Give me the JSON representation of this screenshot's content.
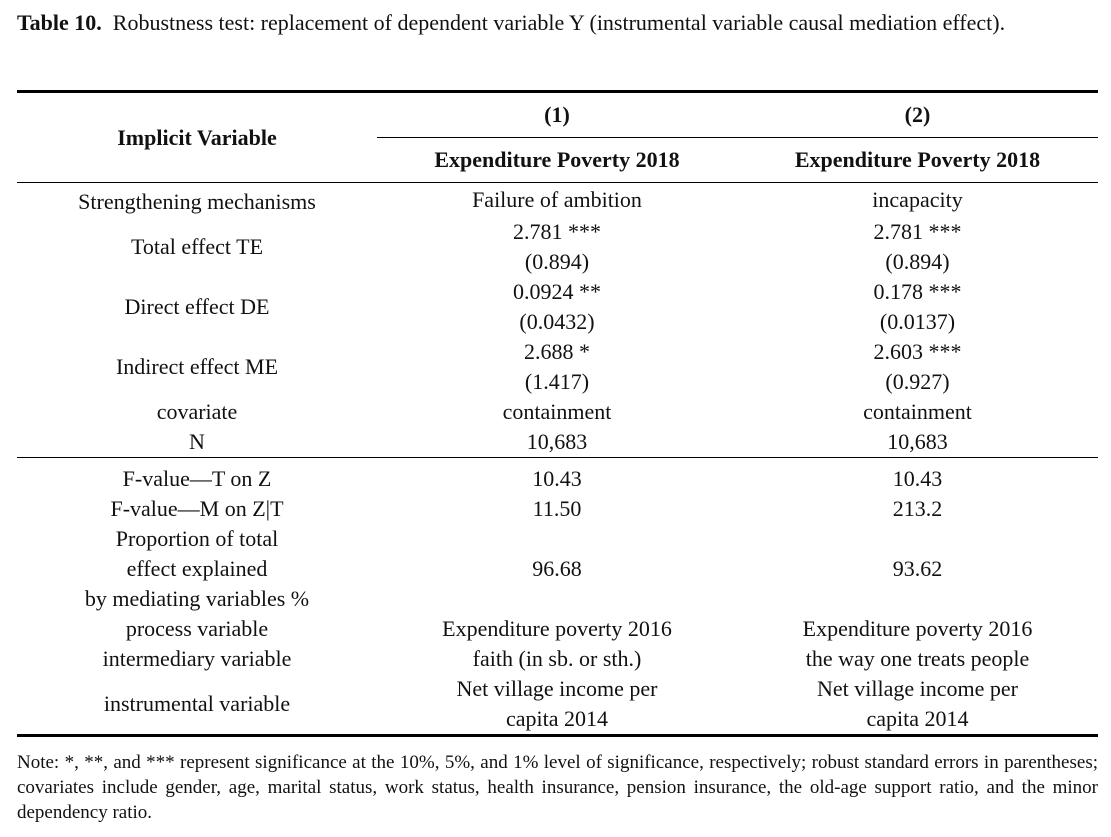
{
  "caption": {
    "label": "Table 10.",
    "text": "Robustness test: replacement of dependent variable Y (instrumental variable causal mediation effect)."
  },
  "header": {
    "row_label": "Implicit Variable",
    "col_numbers": [
      "(1)",
      "(2)"
    ],
    "col_titles": [
      "Expenditure Poverty 2018",
      "Expenditure Poverty 2018"
    ]
  },
  "rows_top": [
    {
      "label": "Strengthening mechanisms",
      "c1": [
        "Failure of ambition"
      ],
      "c2": [
        "incapacity"
      ]
    },
    {
      "label": "Total effect TE",
      "c1": [
        "2.781 ***",
        "(0.894)"
      ],
      "c2": [
        "2.781 ***",
        "(0.894)"
      ]
    },
    {
      "label": "Direct effect DE",
      "c1": [
        "0.0924 **",
        "(0.0432)"
      ],
      "c2": [
        "0.178 ***",
        "(0.0137)"
      ]
    },
    {
      "label": "Indirect effect ME",
      "c1": [
        "2.688 *",
        "(1.417)"
      ],
      "c2": [
        "2.603 ***",
        "(0.927)"
      ]
    },
    {
      "label": "covariate",
      "c1": [
        "containment"
      ],
      "c2": [
        "containment"
      ]
    },
    {
      "label": "N",
      "c1": [
        "10,683"
      ],
      "c2": [
        "10,683"
      ]
    }
  ],
  "rows_bottom": [
    {
      "label": [
        "F-value—T on Z"
      ],
      "c1": [
        "10.43"
      ],
      "c2": [
        "10.43"
      ]
    },
    {
      "label": [
        "F-value—M on Z|T"
      ],
      "c1": [
        "11.50"
      ],
      "c2": [
        "213.2"
      ]
    },
    {
      "label": [
        "Proportion of total",
        "effect explained",
        "by mediating variables %"
      ],
      "c1": [
        "96.68"
      ],
      "c2": [
        "93.62"
      ]
    },
    {
      "label": [
        "process variable"
      ],
      "c1": [
        "Expenditure poverty 2016"
      ],
      "c2": [
        "Expenditure poverty 2016"
      ]
    },
    {
      "label": [
        "intermediary variable"
      ],
      "c1": [
        "faith (in sb. or sth.)"
      ],
      "c2": [
        "the way one treats people"
      ]
    },
    {
      "label": [
        "instrumental variable"
      ],
      "c1": [
        "Net village income per",
        "capita 2014"
      ],
      "c2": [
        "Net village income per",
        "capita 2014"
      ]
    }
  ],
  "note": "Note: *, **, and *** represent significance at the 10%, 5%, and 1% level of significance, respectively; robust standard errors in parentheses; covariates include gender, age, marital status, work status, health insurance, pension insurance, the old-age support ratio, and the minor dependency ratio."
}
